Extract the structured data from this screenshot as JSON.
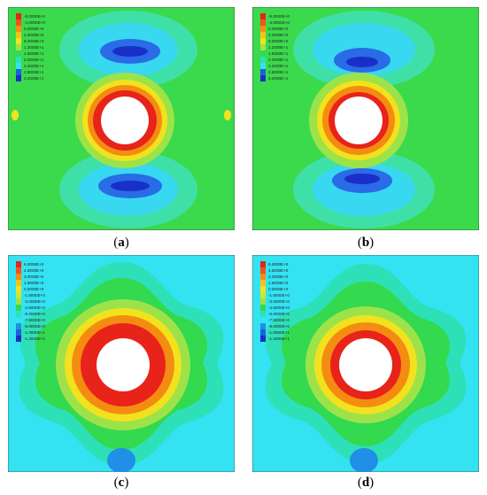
{
  "panels": [
    {
      "id": "a",
      "caption": "a",
      "legend": [
        "-8.0000E+0",
        "-4.0000E+0",
        "0.0000E+0",
        "4.0000E+0",
        "8.0000E+0",
        "1.2000E+1",
        "1.6000E+1",
        "2.0000E+1",
        "2.4000E+1",
        "2.8000E+1",
        "3.2000E+1"
      ]
    },
    {
      "id": "b",
      "caption": "b",
      "legend": [
        "-8.0000E+0",
        "-4.0000E+0",
        "0.0000E+0",
        "4.0000E+0",
        "8.0000E+0",
        "1.2000E+1",
        "1.6000E+1",
        "2.0000E+1",
        "2.4000E+1",
        "2.8000E+1",
        "3.2000E+1"
      ]
    },
    {
      "id": "c",
      "caption": "c",
      "legend": [
        "6.0000E+0",
        "4.5000E+0",
        "3.0000E+0",
        "1.5000E+0",
        "0.0000E+0",
        "-1.5000E+0",
        "-3.0000E+0",
        "-4.5000E+0",
        "-6.0000E+0",
        "-7.5000E+0",
        "-9.0000E+0",
        "-1.0500E+1",
        "-1.2000E+1"
      ]
    },
    {
      "id": "d",
      "caption": "d",
      "legend": [
        "6.0000E+0",
        "4.5000E+0",
        "3.0000E+0",
        "1.5000E+0",
        "0.0000E+0",
        "-1.5000E+0",
        "-3.0000E+0",
        "-4.5000E+0",
        "-6.0000E+0",
        "-7.5000E+0",
        "-9.0000E+0",
        "-1.0500E+1",
        "-1.2000E+1"
      ]
    }
  ],
  "colors": {
    "red": "#e8231a",
    "orange": "#f58c12",
    "yellow": "#f2e21d",
    "lightgreen": "#9ee24a",
    "green": "#33d94e",
    "teal": "#2ee0b8",
    "cyan": "#33e3f2",
    "blue": "#1f5fe0",
    "darkblue": "#1a2fc8"
  }
}
